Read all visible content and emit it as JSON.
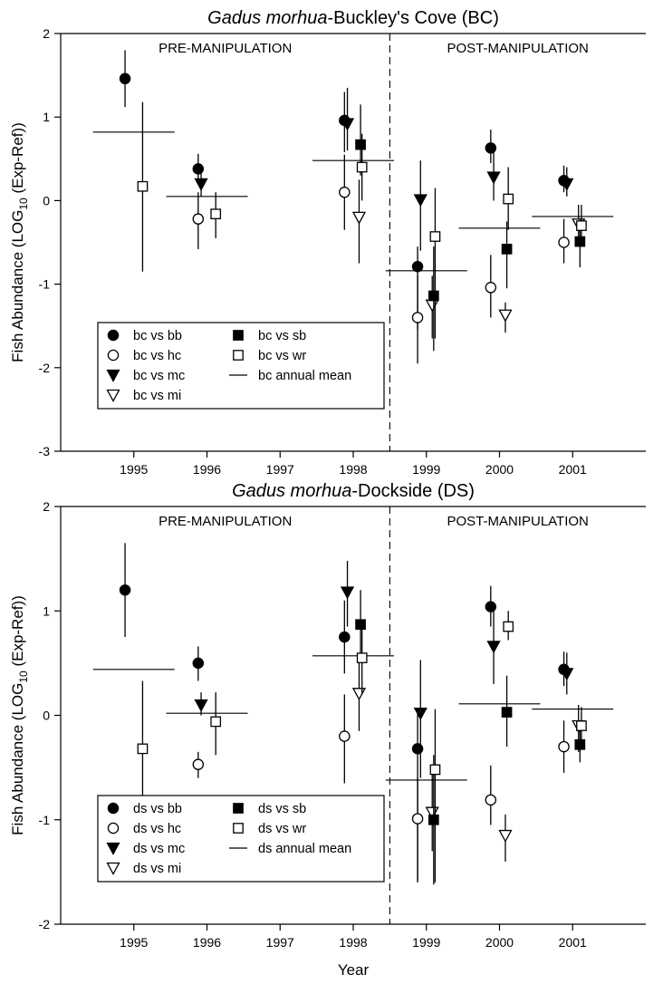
{
  "chart_data": [
    {
      "type": "scatter",
      "title_italic": "Gadus morhua",
      "title_rest": "-Buckley's Cove (BC)",
      "ylabel": "Fish Abundance (LOG10 (Exp-Ref))",
      "ylabel_main": "Fish Abundance (LOG",
      "ylabel_sub": "10",
      "ylabel_end": " (Exp-Ref))",
      "xlabel": "",
      "x_ticks": [
        "1995",
        "1996",
        "1997",
        "1998",
        "1999",
        "2000",
        "2001"
      ],
      "xlim": [
        1994,
        2002
      ],
      "y_ticks": [
        2,
        1,
        0,
        -1,
        -2,
        -3
      ],
      "ylim": [
        -3,
        2
      ],
      "manipulation_divider_x": 1998.5,
      "region_labels": [
        "PRE-MANIPULATION",
        "POST-MANIPULATION"
      ],
      "legend": {
        "placement": "lower-left",
        "entries": [
          {
            "label": "bc vs bb",
            "marker": "filled-circle"
          },
          {
            "label": "bc vs sb",
            "marker": "filled-square"
          },
          {
            "label": "bc vs hc",
            "marker": "open-circle"
          },
          {
            "label": "bc vs wr",
            "marker": "open-square"
          },
          {
            "label": "bc vs mc",
            "marker": "filled-triangle-down"
          },
          {
            "label": "bc annual mean",
            "marker": "line"
          },
          {
            "label": "bc vs mi",
            "marker": "open-triangle-down"
          }
        ]
      },
      "series": [
        {
          "name": "bc vs bb",
          "marker": "filled-circle",
          "points": [
            {
              "x": 1995,
              "y": 1.46,
              "lo": 1.12,
              "hi": 1.8
            },
            {
              "x": 1996,
              "y": 0.38,
              "lo": 0.22,
              "hi": 0.56
            },
            {
              "x": 1998,
              "y": 0.96,
              "lo": 0.58,
              "hi": 1.3
            },
            {
              "x": 1999,
              "y": -0.79,
              "lo": -1.55,
              "hi": -0.55
            },
            {
              "x": 2000,
              "y": 0.63,
              "lo": 0.45,
              "hi": 0.85
            },
            {
              "x": 2001,
              "y": 0.24,
              "lo": 0.1,
              "hi": 0.42
            }
          ]
        },
        {
          "name": "bc vs hc",
          "marker": "open-circle",
          "points": [
            {
              "x": 1996,
              "y": -0.22,
              "lo": -0.58,
              "hi": 0.1
            },
            {
              "x": 1998,
              "y": 0.1,
              "lo": -0.35,
              "hi": 0.55
            },
            {
              "x": 1999,
              "y": -1.4,
              "lo": -1.95,
              "hi": -0.9
            },
            {
              "x": 2000,
              "y": -1.04,
              "lo": -1.4,
              "hi": -0.65
            },
            {
              "x": 2001,
              "y": -0.5,
              "lo": -0.75,
              "hi": -0.22
            }
          ]
        },
        {
          "name": "bc vs mc",
          "marker": "filled-triangle-down",
          "points": [
            {
              "x": 1996,
              "y": 0.2,
              "lo": 0.05,
              "hi": 0.4
            },
            {
              "x": 1998,
              "y": 0.92,
              "lo": 0.6,
              "hi": 1.35
            },
            {
              "x": 1999,
              "y": 0.01,
              "lo": -0.6,
              "hi": 0.48
            },
            {
              "x": 2000,
              "y": 0.28,
              "lo": 0.0,
              "hi": 0.62
            },
            {
              "x": 2001,
              "y": 0.2,
              "lo": 0.05,
              "hi": 0.4
            }
          ]
        },
        {
          "name": "bc vs mi",
          "marker": "open-triangle-down",
          "points": [
            {
              "x": 1998,
              "y": -0.2,
              "lo": -0.75,
              "hi": 0.25
            },
            {
              "x": 1999,
              "y": -1.25,
              "lo": -1.65,
              "hi": -0.9
            },
            {
              "x": 2000,
              "y": -1.37,
              "lo": -1.58,
              "hi": -1.22
            },
            {
              "x": 2001,
              "y": -0.28,
              "lo": -0.55,
              "hi": -0.05
            }
          ]
        },
        {
          "name": "bc vs sb",
          "marker": "filled-square",
          "points": [
            {
              "x": 1998,
              "y": 0.67,
              "lo": 0.3,
              "hi": 1.15
            },
            {
              "x": 1999,
              "y": -1.14,
              "lo": -1.8,
              "hi": -0.55
            },
            {
              "x": 2000,
              "y": -0.58,
              "lo": -1.05,
              "hi": -0.25
            },
            {
              "x": 2001,
              "y": -0.49,
              "lo": -0.8,
              "hi": -0.22
            }
          ]
        },
        {
          "name": "bc vs wr",
          "marker": "open-square",
          "points": [
            {
              "x": 1995,
              "y": 0.17,
              "lo": -0.85,
              "hi": 1.18
            },
            {
              "x": 1996,
              "y": -0.16,
              "lo": -0.45,
              "hi": 0.1
            },
            {
              "x": 1998,
              "y": 0.4,
              "lo": 0.0,
              "hi": 0.8
            },
            {
              "x": 1999,
              "y": -0.43,
              "lo": -1.65,
              "hi": 0.15
            },
            {
              "x": 2000,
              "y": 0.02,
              "lo": -0.35,
              "hi": 0.4
            },
            {
              "x": 2001,
              "y": -0.3,
              "lo": -0.55,
              "hi": -0.05
            }
          ]
        }
      ],
      "annual_mean": [
        {
          "x": 1995,
          "y": 0.82
        },
        {
          "x": 1996,
          "y": 0.05
        },
        {
          "x": 1998,
          "y": 0.48
        },
        {
          "x": 1999,
          "y": -0.84
        },
        {
          "x": 2000,
          "y": -0.33
        },
        {
          "x": 2001,
          "y": -0.19
        }
      ]
    },
    {
      "type": "scatter",
      "title_italic": "Gadus morhua",
      "title_rest": "-Dockside (DS)",
      "ylabel": "Fish Abundance (LOG10 (Exp-Ref))",
      "ylabel_main": "Fish Abundance (LOG",
      "ylabel_sub": "10",
      "ylabel_end": " (Exp-Ref))",
      "xlabel": "Year",
      "x_ticks": [
        "1995",
        "1996",
        "1997",
        "1998",
        "1999",
        "2000",
        "2001"
      ],
      "xlim": [
        1994,
        2002
      ],
      "y_ticks": [
        2,
        1,
        0,
        -1,
        -2
      ],
      "ylim": [
        -2,
        2
      ],
      "manipulation_divider_x": 1998.5,
      "region_labels": [
        "PRE-MANIPULATION",
        "POST-MANIPULATION"
      ],
      "legend": {
        "placement": "lower-left",
        "entries": [
          {
            "label": "ds vs bb",
            "marker": "filled-circle"
          },
          {
            "label": "ds vs sb",
            "marker": "filled-square"
          },
          {
            "label": "ds vs hc",
            "marker": "open-circle"
          },
          {
            "label": "ds vs wr",
            "marker": "open-square"
          },
          {
            "label": "ds vs mc",
            "marker": "filled-triangle-down"
          },
          {
            "label": "ds annual mean",
            "marker": "line"
          },
          {
            "label": "ds vs mi",
            "marker": "open-triangle-down"
          }
        ]
      },
      "series": [
        {
          "name": "ds vs bb",
          "marker": "filled-circle",
          "points": [
            {
              "x": 1995,
              "y": 1.2,
              "lo": 0.75,
              "hi": 1.65
            },
            {
              "x": 1996,
              "y": 0.5,
              "lo": 0.33,
              "hi": 0.66
            },
            {
              "x": 1998,
              "y": 0.75,
              "lo": 0.4,
              "hi": 1.1
            },
            {
              "x": 1999,
              "y": -0.32,
              "lo": -1.58,
              "hi": 0.02
            },
            {
              "x": 2000,
              "y": 1.04,
              "lo": 0.85,
              "hi": 1.24
            },
            {
              "x": 2001,
              "y": 0.44,
              "lo": 0.28,
              "hi": 0.61
            }
          ]
        },
        {
          "name": "ds vs hc",
          "marker": "open-circle",
          "points": [
            {
              "x": 1996,
              "y": -0.47,
              "lo": -0.6,
              "hi": -0.35
            },
            {
              "x": 1998,
              "y": -0.2,
              "lo": -0.65,
              "hi": 0.2
            },
            {
              "x": 1999,
              "y": -0.99,
              "lo": -1.6,
              "hi": -0.6
            },
            {
              "x": 2000,
              "y": -0.81,
              "lo": -1.05,
              "hi": -0.48
            },
            {
              "x": 2001,
              "y": -0.3,
              "lo": -0.55,
              "hi": -0.05
            }
          ]
        },
        {
          "name": "ds vs mc",
          "marker": "filled-triangle-down",
          "points": [
            {
              "x": 1996,
              "y": 0.1,
              "lo": 0.0,
              "hi": 0.22
            },
            {
              "x": 1998,
              "y": 1.18,
              "lo": 0.85,
              "hi": 1.48
            },
            {
              "x": 1999,
              "y": 0.02,
              "lo": -0.6,
              "hi": 0.53
            },
            {
              "x": 2000,
              "y": 0.66,
              "lo": 0.3,
              "hi": 1.0
            },
            {
              "x": 2001,
              "y": 0.4,
              "lo": 0.2,
              "hi": 0.6
            }
          ]
        },
        {
          "name": "ds vs mi",
          "marker": "open-triangle-down",
          "points": [
            {
              "x": 1998,
              "y": 0.21,
              "lo": -0.15,
              "hi": 0.55
            },
            {
              "x": 1999,
              "y": -0.93,
              "lo": -1.3,
              "hi": -0.55
            },
            {
              "x": 2000,
              "y": -1.15,
              "lo": -1.4,
              "hi": -0.95
            },
            {
              "x": 2001,
              "y": -0.1,
              "lo": -0.35,
              "hi": 0.1
            }
          ]
        },
        {
          "name": "ds vs sb",
          "marker": "filled-square",
          "points": [
            {
              "x": 1998,
              "y": 0.87,
              "lo": 0.5,
              "hi": 1.2
            },
            {
              "x": 1999,
              "y": -1.0,
              "lo": -1.62,
              "hi": -0.38
            },
            {
              "x": 2000,
              "y": 0.03,
              "lo": -0.3,
              "hi": 0.38
            },
            {
              "x": 2001,
              "y": -0.28,
              "lo": -0.45,
              "hi": -0.1
            }
          ]
        },
        {
          "name": "ds vs wr",
          "marker": "open-square",
          "points": [
            {
              "x": 1995,
              "y": -0.32,
              "lo": -0.98,
              "hi": 0.33
            },
            {
              "x": 1996,
              "y": -0.06,
              "lo": -0.38,
              "hi": 0.22
            },
            {
              "x": 1998,
              "y": 0.55,
              "lo": 0.2,
              "hi": 0.9
            },
            {
              "x": 1999,
              "y": -0.52,
              "lo": -1.6,
              "hi": 0.06
            },
            {
              "x": 2000,
              "y": 0.85,
              "lo": 0.72,
              "hi": 1.0
            },
            {
              "x": 2001,
              "y": -0.1,
              "lo": -0.3,
              "hi": 0.08
            }
          ]
        }
      ],
      "annual_mean": [
        {
          "x": 1995,
          "y": 0.44
        },
        {
          "x": 1996,
          "y": 0.02
        },
        {
          "x": 1998,
          "y": 0.57
        },
        {
          "x": 1999,
          "y": -0.62
        },
        {
          "x": 2000,
          "y": 0.11
        },
        {
          "x": 2001,
          "y": 0.06
        }
      ]
    }
  ]
}
